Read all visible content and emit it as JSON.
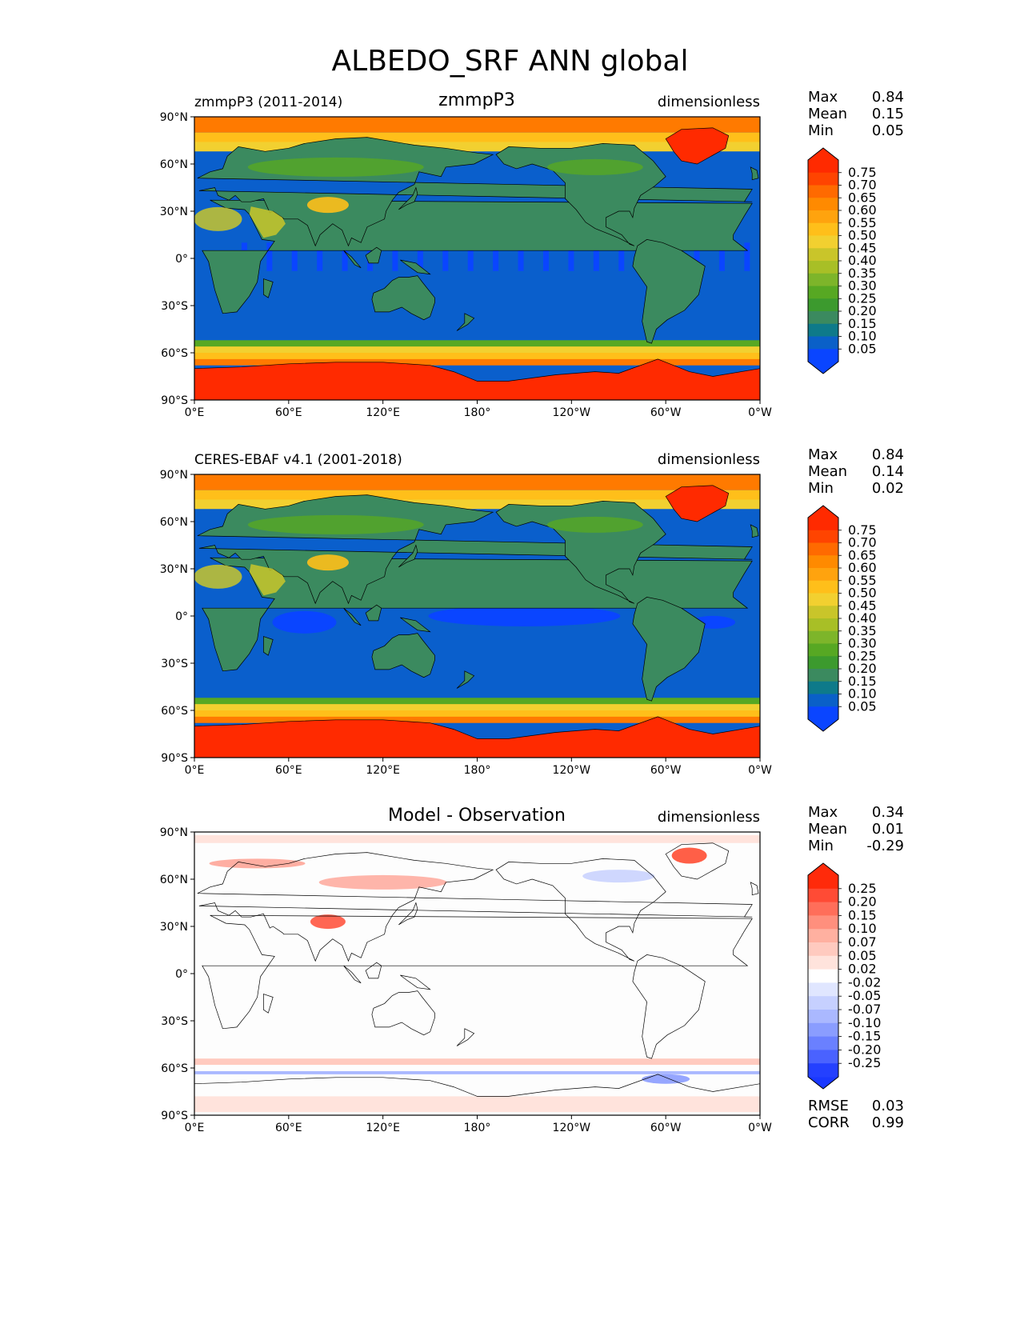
{
  "title": "ALBEDO_SRF ANN global",
  "x_ticks": [
    "0°E",
    "60°E",
    "120°E",
    "180°",
    "120°W",
    "60°W",
    "0°W"
  ],
  "y_ticks": [
    "90°N",
    "60°N",
    "30°N",
    "0°",
    "30°S",
    "60°S",
    "90°S"
  ],
  "panels": [
    {
      "id": "test",
      "left_title": "zmmpP3 (2011-2014)",
      "center_title": "zmmpP3",
      "right_title": "dimensionless",
      "stats": [
        {
          "label": "Max",
          "value": "0.84"
        },
        {
          "label": "Mean",
          "value": "0.15"
        },
        {
          "label": "Min",
          "value": "0.05"
        }
      ],
      "colorbar_labels": [
        "0.75",
        "0.70",
        "0.65",
        "0.60",
        "0.55",
        "0.50",
        "0.45",
        "0.40",
        "0.35",
        "0.30",
        "0.25",
        "0.20",
        "0.15",
        "0.10",
        "0.05"
      ],
      "colorbar_colors": [
        "#ff2a00",
        "#ff4400",
        "#ff6a00",
        "#ff8a00",
        "#ffa30e",
        "#ffbf1a",
        "#f2d030",
        "#c9c52a",
        "#a8bf26",
        "#7db52a",
        "#57a823",
        "#3c9a2e",
        "#3b8a5f",
        "#0e7a8a",
        "#0a60c8",
        "#0a45ff"
      ],
      "cb_end_top": "#ff2a00",
      "cb_end_bottom": "#0a45ff",
      "legend_series": [],
      "extra_stats": []
    },
    {
      "id": "reference",
      "left_title": "CERES-EBAF v4.1 (2001-2018)",
      "center_title": "",
      "right_title": "dimensionless",
      "stats": [
        {
          "label": "Max",
          "value": "0.84"
        },
        {
          "label": "Mean",
          "value": "0.14"
        },
        {
          "label": "Min",
          "value": "0.02"
        }
      ],
      "colorbar_labels": [
        "0.75",
        "0.70",
        "0.65",
        "0.60",
        "0.55",
        "0.50",
        "0.45",
        "0.40",
        "0.35",
        "0.30",
        "0.25",
        "0.20",
        "0.15",
        "0.10",
        "0.05"
      ],
      "colorbar_colors": [
        "#ff2a00",
        "#ff4400",
        "#ff6a00",
        "#ff8a00",
        "#ffa30e",
        "#ffbf1a",
        "#f2d030",
        "#c9c52a",
        "#a8bf26",
        "#7db52a",
        "#57a823",
        "#3c9a2e",
        "#3b8a5f",
        "#0e7a8a",
        "#0a60c8",
        "#0a45ff"
      ],
      "cb_end_top": "#ff2a00",
      "cb_end_bottom": "#0a45ff",
      "extra_stats": []
    },
    {
      "id": "difference",
      "left_title": "",
      "center_title": "Model - Observation",
      "right_title": "dimensionless",
      "stats": [
        {
          "label": "Max",
          "value": "0.34"
        },
        {
          "label": "Mean",
          "value": "0.01"
        },
        {
          "label": "Min",
          "value": "-0.29"
        }
      ],
      "colorbar_labels": [
        "0.25",
        "0.20",
        "0.15",
        "0.10",
        "0.07",
        "0.05",
        "0.02",
        "-0.02",
        "-0.05",
        "-0.07",
        "-0.10",
        "-0.15",
        "-0.20",
        "-0.25"
      ],
      "colorbar_colors": [
        "#ff2a0a",
        "#ff4b35",
        "#ff6e5a",
        "#ff8f7d",
        "#ffb0a0",
        "#ffcabf",
        "#ffe3dc",
        "#ffffff",
        "#e0e6ff",
        "#c6d0ff",
        "#aab8ff",
        "#8a9dff",
        "#6a80ff",
        "#4a62ff",
        "#2440ff"
      ],
      "cb_end_top": "#ff2a0a",
      "cb_end_bottom": "#1a38ff",
      "extra_stats": [
        {
          "label": "RMSE",
          "value": "0.03"
        },
        {
          "label": "CORR",
          "value": "0.99"
        }
      ]
    }
  ],
  "map_colors": {
    "polar_high": "#ff2a00",
    "ice_orange": "#ff7a00",
    "ice_yellow": "#ffbf1a",
    "ocean": "#0a5fcc",
    "ocean_bright": "#0a45ff",
    "land_teal": "#3b8a5f",
    "land_green": "#57a823",
    "desert_yellow": "#c9c52a",
    "diff_pos": "#ff7a66",
    "diff_neg": "#aab8ff"
  }
}
